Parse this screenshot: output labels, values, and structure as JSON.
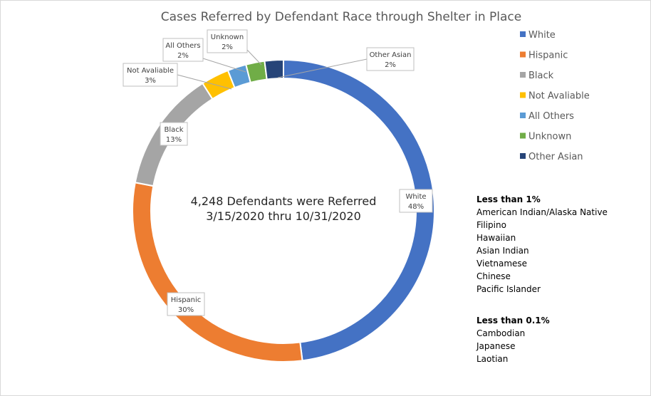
{
  "chart_data": {
    "type": "pie",
    "title": "Cases Referred by Defendant Race through Shelter in Place",
    "center_text": [
      "4,248 Defendants were Referred",
      "3/15/2020 thru 10/31/2020"
    ],
    "categories": [
      "White",
      "Hispanic",
      "Black",
      "Not Avaliable",
      "All Others",
      "Unknown",
      "Other Asian"
    ],
    "values": [
      48,
      30,
      13,
      3,
      2,
      2,
      2
    ],
    "value_labels": [
      "48%",
      "30%",
      "13%",
      "3%",
      "2%",
      "2%",
      "2%"
    ],
    "colors": [
      "#4472C4",
      "#ED7D31",
      "#A5A5A5",
      "#FFC000",
      "#5B9BD5",
      "#70AD47",
      "#264478"
    ],
    "legend_position": "right",
    "donut": true
  },
  "notes": [
    {
      "heading": "Less than 1%",
      "items": [
        "American Indian/Alaska Native",
        "Filipino",
        "Hawaiian",
        "Asian Indian",
        "Vietnamese",
        "Chinese",
        "Pacific Islander"
      ]
    },
    {
      "heading": "Less than 0.1%",
      "items": [
        "Cambodian",
        "Japanese",
        "Laotian"
      ]
    }
  ]
}
